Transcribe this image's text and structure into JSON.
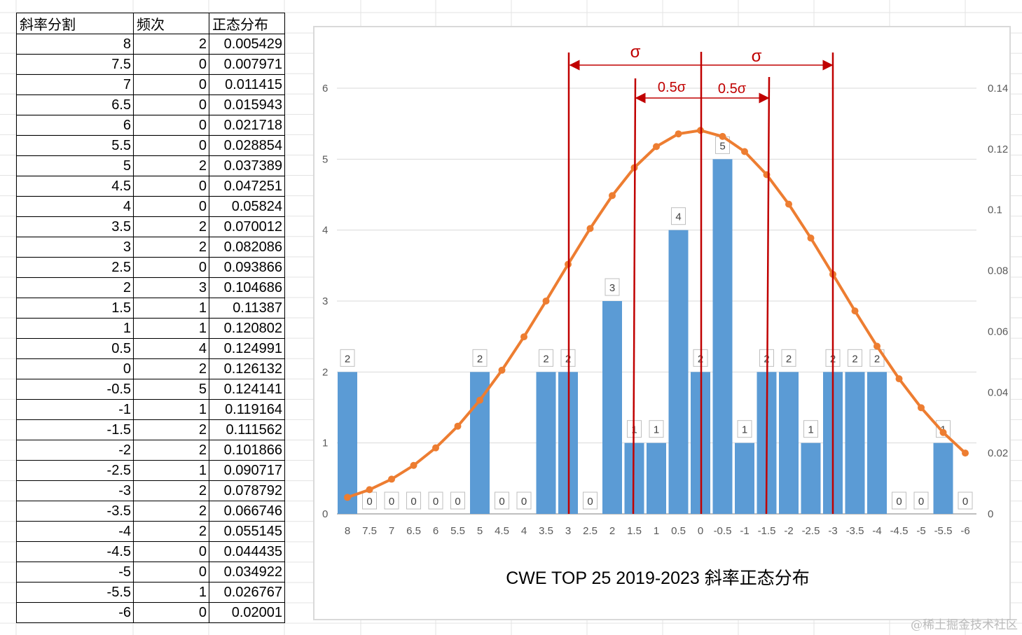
{
  "table": {
    "headers": [
      "斜率分割",
      "频次",
      "正态分布"
    ],
    "rows": [
      [
        "8",
        "2",
        "0.005429"
      ],
      [
        "7.5",
        "0",
        "0.007971"
      ],
      [
        "7",
        "0",
        "0.011415"
      ],
      [
        "6.5",
        "0",
        "0.015943"
      ],
      [
        "6",
        "0",
        "0.021718"
      ],
      [
        "5.5",
        "0",
        "0.028854"
      ],
      [
        "5",
        "2",
        "0.037389"
      ],
      [
        "4.5",
        "0",
        "0.047251"
      ],
      [
        "4",
        "0",
        "0.05824"
      ],
      [
        "3.5",
        "2",
        "0.070012"
      ],
      [
        "3",
        "2",
        "0.082086"
      ],
      [
        "2.5",
        "0",
        "0.093866"
      ],
      [
        "2",
        "3",
        "0.104686"
      ],
      [
        "1.5",
        "1",
        "0.11387"
      ],
      [
        "1",
        "1",
        "0.120802"
      ],
      [
        "0.5",
        "4",
        "0.124991"
      ],
      [
        "0",
        "2",
        "0.126132"
      ],
      [
        "-0.5",
        "5",
        "0.124141"
      ],
      [
        "-1",
        "1",
        "0.119164"
      ],
      [
        "-1.5",
        "2",
        "0.111562"
      ],
      [
        "-2",
        "2",
        "0.101866"
      ],
      [
        "-2.5",
        "1",
        "0.090717"
      ],
      [
        "-3",
        "2",
        "0.078792"
      ],
      [
        "-3.5",
        "2",
        "0.066746"
      ],
      [
        "-4",
        "2",
        "0.055145"
      ],
      [
        "-4.5",
        "0",
        "0.044435"
      ],
      [
        "-5",
        "0",
        "0.034922"
      ],
      [
        "-5.5",
        "1",
        "0.026767"
      ],
      [
        "-6",
        "0",
        "0.02001"
      ]
    ]
  },
  "chart_data": {
    "type": "bar+line",
    "title": "CWE TOP 25 2019-2023 斜率正态分布",
    "categories": [
      "8",
      "7.5",
      "7",
      "6.5",
      "6",
      "5.5",
      "5",
      "4.5",
      "4",
      "3.5",
      "3",
      "2.5",
      "2",
      "1.5",
      "1",
      "0.5",
      "0",
      "-0.5",
      "-1",
      "-1.5",
      "-2",
      "-2.5",
      "-3",
      "-3.5",
      "-4",
      "-4.5",
      "-5",
      "-5.5",
      "-6"
    ],
    "bar_values": [
      2,
      0,
      0,
      0,
      0,
      0,
      2,
      0,
      0,
      2,
      2,
      0,
      3,
      1,
      1,
      4,
      2,
      5,
      1,
      2,
      2,
      1,
      2,
      2,
      2,
      0,
      0,
      1,
      0
    ],
    "line_values": [
      0.005429,
      0.007971,
      0.011415,
      0.015943,
      0.021718,
      0.028854,
      0.037389,
      0.047251,
      0.05824,
      0.070012,
      0.082086,
      0.093866,
      0.104686,
      0.11387,
      0.120802,
      0.124991,
      0.126132,
      0.124141,
      0.119164,
      0.111562,
      0.101866,
      0.090717,
      0.078792,
      0.066746,
      0.055145,
      0.044435,
      0.034922,
      0.026767,
      0.02001
    ],
    "y_left": {
      "range": [
        0,
        6
      ],
      "ticks": [
        "0",
        "1",
        "2",
        "3",
        "4",
        "5",
        "6"
      ]
    },
    "y_right": {
      "range": [
        0,
        0.14
      ],
      "ticks": [
        "0",
        "0.02",
        "0.04",
        "0.06",
        "0.08",
        "0.1",
        "0.12",
        "0.14"
      ]
    },
    "grid": true,
    "bar_color": "#5b9bd5",
    "line_color": "#ed7d31",
    "annotations": {
      "sigma": "σ",
      "half_sigma": "0.5σ",
      "color": "#c00000",
      "vertical_lines_at": [
        "3",
        "1.5",
        "0",
        "-1.5",
        "-3"
      ]
    }
  },
  "watermark": "@稀土掘金技术社区"
}
